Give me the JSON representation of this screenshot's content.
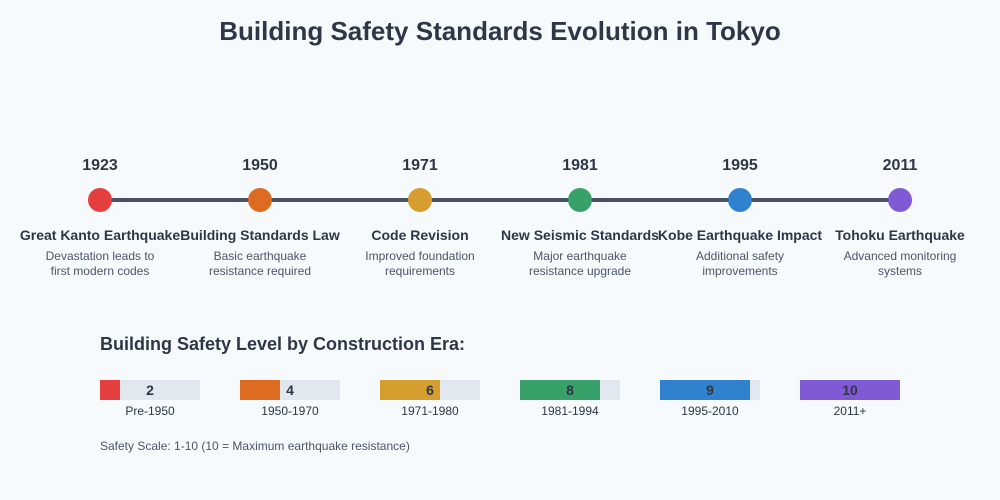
{
  "title": "Building Safety Standards Evolution in Tokyo",
  "colors": {
    "background": "#f7fafc",
    "line": "#4a5568",
    "text": "#2d3748",
    "subtext": "#4a5568",
    "track": "#e2e8f0"
  },
  "events": [
    {
      "year": "1923",
      "title": "Great Kanto Earthquake",
      "desc": [
        "Devastation leads to",
        "first modern codes"
      ],
      "color": "#e53e3e"
    },
    {
      "year": "1950",
      "title": "Building Standards Law",
      "desc": [
        "Basic earthquake",
        "resistance required"
      ],
      "color": "#dd6b20"
    },
    {
      "year": "1971",
      "title": "Code Revision",
      "desc": [
        "Improved foundation",
        "requirements"
      ],
      "color": "#d69e2e"
    },
    {
      "year": "1981",
      "title": "New Seismic Standards",
      "desc": [
        "Major earthquake",
        "resistance upgrade"
      ],
      "color": "#38a169"
    },
    {
      "year": "1995",
      "title": "Kobe Earthquake Impact",
      "desc": [
        "Additional safety",
        "improvements"
      ],
      "color": "#3182ce"
    },
    {
      "year": "2011",
      "title": "Tohoku Earthquake",
      "desc": [
        "Advanced monitoring",
        "systems"
      ],
      "color": "#805ad5"
    }
  ],
  "safety": {
    "heading": "Building Safety Level by Construction Era:",
    "max": 10,
    "levels": [
      {
        "era": "Pre-1950",
        "value": 2,
        "label": "2",
        "color": "#e53e3e"
      },
      {
        "era": "1950-1970",
        "value": 4,
        "label": "4",
        "color": "#dd6b20"
      },
      {
        "era": "1971-1980",
        "value": 6,
        "label": "6",
        "color": "#d69e2e"
      },
      {
        "era": "1981-1994",
        "value": 8,
        "label": "8",
        "color": "#38a169"
      },
      {
        "era": "1995-2010",
        "value": 9,
        "label": "9",
        "color": "#3182ce"
      },
      {
        "era": "2011+",
        "value": 10,
        "label": "10",
        "color": "#805ad5"
      }
    ],
    "note": "Safety Scale: 1-10 (10 = Maximum earthquake resistance)"
  }
}
